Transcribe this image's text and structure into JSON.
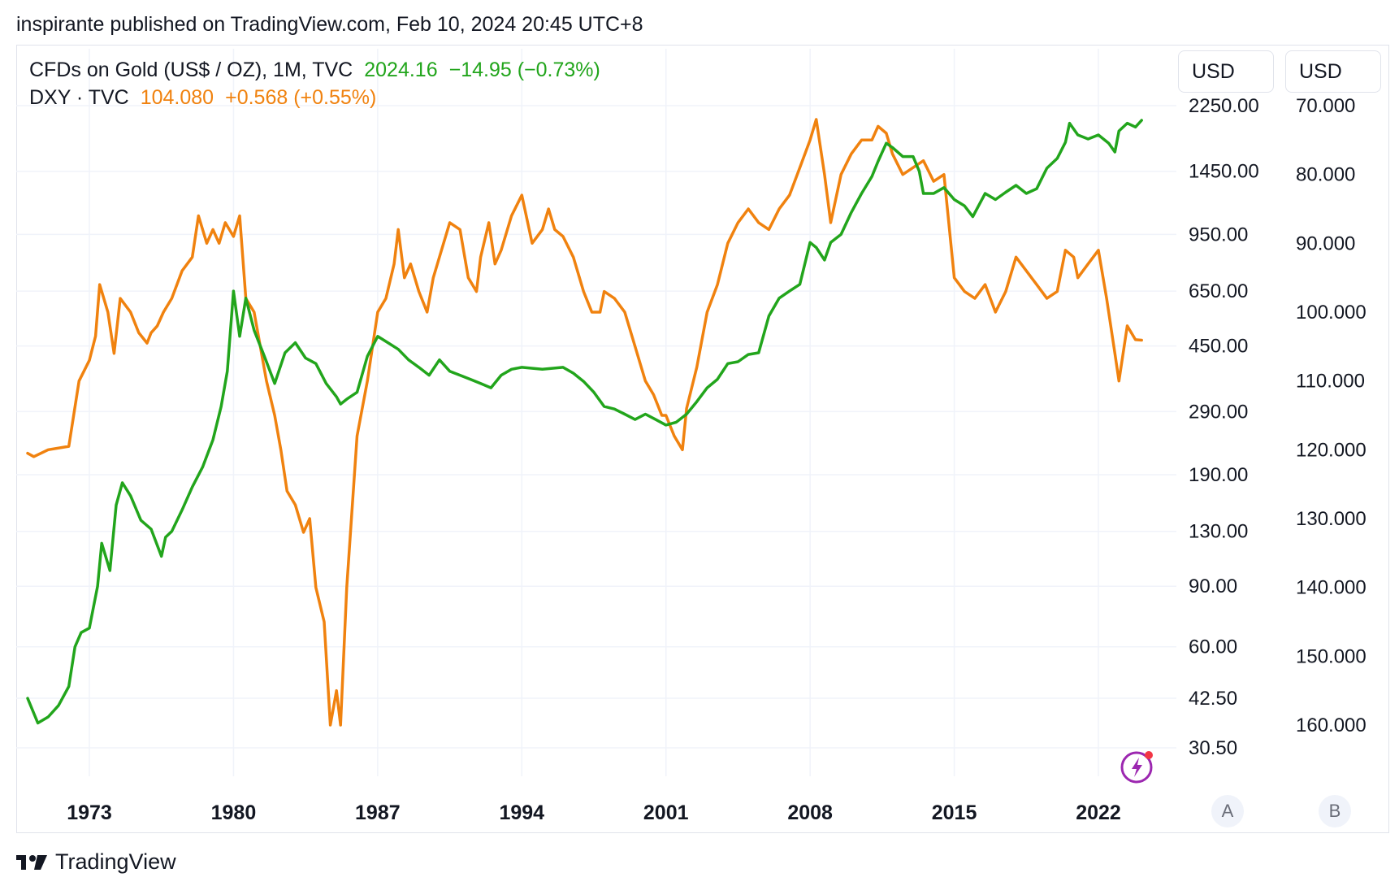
{
  "header": {
    "published": "inspirante published on TradingView.com, Feb 10, 2024 20:45 UTC+8"
  },
  "legend": {
    "gold": {
      "title": "CFDs on Gold (US$ / OZ), 1M, TVC",
      "price": "2024.16",
      "change": "−14.95 (−0.73%)",
      "color": "#22a51c"
    },
    "dxy": {
      "title": "DXY · TVC",
      "price": "104.080",
      "change": "+0.568 (+0.55%)",
      "color": "#f0820f"
    }
  },
  "scales": {
    "a": {
      "unit": "USD",
      "button": "A"
    },
    "b": {
      "unit": "USD",
      "button": "B"
    }
  },
  "brand": {
    "name": "TradingView"
  },
  "chart_data": {
    "type": "line",
    "title": "",
    "xlabel": "",
    "ylabel": "",
    "x_ticks": [
      "1973",
      "1980",
      "1987",
      "1994",
      "2001",
      "2008",
      "2015",
      "2022"
    ],
    "x_tick_years": [
      1973,
      1980,
      1987,
      1994,
      2001,
      2008,
      2015,
      2022
    ],
    "xlim": [
      1969.5,
      2024.9
    ],
    "left_axis": {
      "name": "A",
      "scale": "log",
      "ticks": [
        "2250.00",
        "1450.00",
        "950.00",
        "650.00",
        "450.00",
        "290.00",
        "190.00",
        "130.00",
        "90.00",
        "60.00",
        "42.50",
        "30.50"
      ],
      "tick_values": [
        2250,
        1450,
        950,
        650,
        450,
        290,
        190,
        130,
        90,
        60,
        42.5,
        30.5
      ]
    },
    "right_axis": {
      "name": "B",
      "scale": "linear",
      "inverted": true,
      "ticks": [
        "70.000",
        "80.000",
        "90.000",
        "100.000",
        "110.000",
        "120.000",
        "130.000",
        "140.000",
        "150.000",
        "160.000"
      ],
      "tick_values": [
        70,
        80,
        90,
        100,
        110,
        120,
        130,
        140,
        150,
        160
      ]
    },
    "grid": true,
    "series": [
      {
        "name": "CFDs on Gold (US$ / OZ), 1M, TVC",
        "axis": "A",
        "color": "#22a51c",
        "x": [
          1970.0,
          1970.5,
          1971.0,
          1971.5,
          1972.0,
          1972.3,
          1972.6,
          1973.0,
          1973.4,
          1973.6,
          1974.0,
          1974.3,
          1974.6,
          1975.0,
          1975.5,
          1976.0,
          1976.5,
          1976.7,
          1977.0,
          1977.5,
          1978.0,
          1978.5,
          1979.0,
          1979.4,
          1979.7,
          1980.0,
          1980.3,
          1980.6,
          1981.0,
          1981.5,
          1982.0,
          1982.5,
          1983.0,
          1983.5,
          1984.0,
          1984.5,
          1985.0,
          1985.2,
          1985.5,
          1986.0,
          1986.5,
          1987.0,
          1987.5,
          1988.0,
          1988.5,
          1989.0,
          1989.5,
          1990.0,
          1990.5,
          1991.0,
          1991.5,
          1992.0,
          1992.5,
          1993.0,
          1993.5,
          1994.0,
          1995.0,
          1996.0,
          1996.5,
          1997.0,
          1997.5,
          1998.0,
          1998.5,
          1999.0,
          1999.5,
          2000.0,
          2000.5,
          2001.0,
          2001.5,
          2002.0,
          2002.5,
          2003.0,
          2003.5,
          2004.0,
          2004.5,
          2005.0,
          2005.5,
          2006.0,
          2006.5,
          2007.0,
          2007.5,
          2008.0,
          2008.3,
          2008.7,
          2009.0,
          2009.5,
          2010.0,
          2010.5,
          2011.0,
          2011.3,
          2011.7,
          2012.0,
          2012.5,
          2013.0,
          2013.3,
          2013.5,
          2014.0,
          2014.5,
          2015.0,
          2015.5,
          2015.9,
          2016.5,
          2017.0,
          2017.5,
          2018.0,
          2018.5,
          2019.0,
          2019.5,
          2020.0,
          2020.4,
          2020.6,
          2021.0,
          2021.5,
          2022.0,
          2022.5,
          2022.8,
          2023.0,
          2023.4,
          2023.8,
          2024.1
        ],
        "values": [
          42.5,
          36.0,
          37.5,
          40.5,
          46,
          60,
          66,
          68,
          90,
          120,
          100,
          155,
          180,
          165,
          140,
          132,
          110,
          125,
          130,
          150,
          175,
          200,
          240,
          300,
          380,
          650,
          480,
          620,
          500,
          420,
          350,
          430,
          460,
          415,
          400,
          350,
          320,
          305,
          315,
          330,
          420,
          480,
          460,
          440,
          410,
          390,
          370,
          410,
          380,
          370,
          360,
          350,
          340,
          370,
          385,
          390,
          385,
          390,
          375,
          355,
          330,
          300,
          295,
          285,
          275,
          285,
          275,
          265,
          270,
          285,
          310,
          340,
          360,
          400,
          405,
          425,
          430,
          550,
          620,
          650,
          680,
          900,
          870,
          800,
          900,
          950,
          1100,
          1250,
          1400,
          1550,
          1750,
          1700,
          1600,
          1600,
          1450,
          1250,
          1250,
          1300,
          1200,
          1150,
          1070,
          1250,
          1200,
          1260,
          1320,
          1250,
          1290,
          1480,
          1580,
          1760,
          2000,
          1850,
          1800,
          1850,
          1750,
          1650,
          1900,
          2000,
          1950,
          2040
        ]
      },
      {
        "name": "DXY · TVC",
        "axis": "B",
        "color": "#f0820f",
        "x": [
          1970.0,
          1970.3,
          1971.0,
          1972.0,
          1972.5,
          1973.0,
          1973.3,
          1973.5,
          1973.9,
          1974.2,
          1974.5,
          1975.0,
          1975.4,
          1975.8,
          1976.0,
          1976.3,
          1976.6,
          1977.0,
          1977.5,
          1978.0,
          1978.3,
          1978.7,
          1979.0,
          1979.3,
          1979.6,
          1980.0,
          1980.3,
          1980.6,
          1981.0,
          1981.3,
          1981.6,
          1982.0,
          1982.3,
          1982.6,
          1983.0,
          1983.4,
          1983.7,
          1984.0,
          1984.4,
          1984.7,
          1985.0,
          1985.2,
          1985.5,
          1986.0,
          1986.5,
          1987.0,
          1987.4,
          1987.8,
          1988.0,
          1988.3,
          1988.6,
          1989.0,
          1989.4,
          1989.7,
          1990.0,
          1990.5,
          1991.0,
          1991.4,
          1991.8,
          1992.0,
          1992.4,
          1992.7,
          1993.0,
          1993.5,
          1994.0,
          1994.5,
          1995.0,
          1995.3,
          1995.6,
          1996.0,
          1996.5,
          1997.0,
          1997.4,
          1997.8,
          1998.0,
          1998.5,
          1999.0,
          1999.5,
          2000.0,
          2000.4,
          2000.8,
          2001.0,
          2001.4,
          2001.8,
          2002.0,
          2002.5,
          2003.0,
          2003.5,
          2004.0,
          2004.5,
          2005.0,
          2005.5,
          2006.0,
          2006.5,
          2007.0,
          2007.5,
          2008.0,
          2008.3,
          2008.7,
          2009.0,
          2009.5,
          2010.0,
          2010.5,
          2011.0,
          2011.3,
          2011.7,
          2012.0,
          2012.5,
          2013.0,
          2013.5,
          2014.0,
          2014.5,
          2015.0,
          2015.5,
          2016.0,
          2016.5,
          2017.0,
          2017.5,
          2018.0,
          2018.5,
          2019.0,
          2019.5,
          2020.0,
          2020.4,
          2020.8,
          2021.0,
          2021.5,
          2022.0,
          2022.4,
          2022.8,
          2023.0,
          2023.4,
          2023.8,
          2024.1
        ],
        "values": [
          120.5,
          121,
          120,
          119.5,
          110,
          107,
          103.5,
          96,
          100,
          106,
          98,
          100,
          103,
          104.5,
          103,
          102,
          100,
          98,
          94,
          92,
          86,
          90,
          88,
          90,
          87,
          89,
          86,
          98,
          100,
          105,
          110,
          115,
          120,
          126,
          128,
          132,
          130,
          140,
          145,
          160,
          155,
          160,
          140,
          118,
          110,
          100,
          98,
          93,
          88,
          95,
          93,
          97,
          100,
          95,
          92,
          87,
          88,
          95,
          97,
          92,
          87,
          93,
          91,
          86,
          83,
          90,
          88,
          85,
          88,
          89,
          92,
          97,
          100,
          100,
          97,
          98,
          100,
          105,
          110,
          112,
          115,
          115,
          118,
          120,
          114,
          108,
          100,
          96,
          90,
          87,
          85,
          87,
          88,
          85,
          83,
          79,
          75,
          72,
          80,
          87,
          80,
          77,
          75,
          75,
          73,
          74,
          77,
          80,
          79,
          78,
          81,
          80,
          95,
          97,
          98,
          96,
          100,
          97,
          92,
          94,
          96,
          98,
          97,
          91,
          92,
          95,
          93,
          91,
          98,
          106,
          110,
          102,
          104,
          104.08
        ]
      }
    ]
  }
}
